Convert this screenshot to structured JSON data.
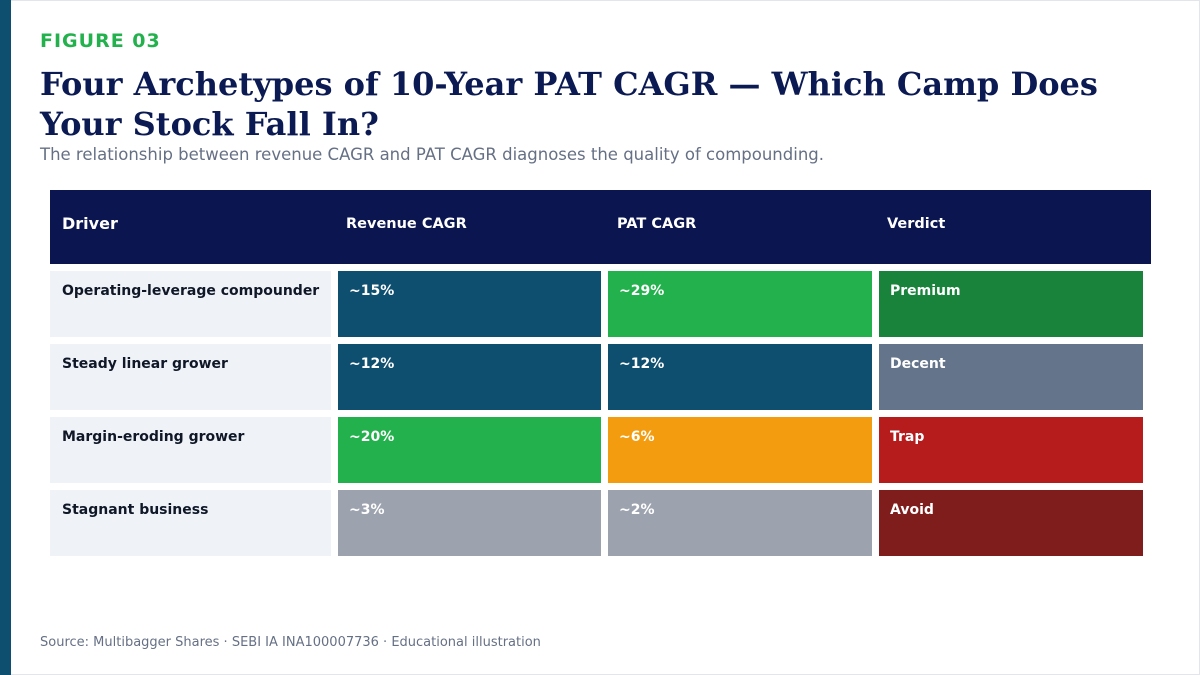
{
  "figure_label": "FIGURE 03",
  "title": "Four Archetypes of 10-Year PAT CAGR — Which Camp Does Your Stock Fall In?",
  "subtitle": "The relationship between revenue CAGR and PAT CAGR diagnoses the quality of compounding.",
  "source": "Source: Multibagger Shares · SEBI IA INA100007736 · Educational illustration",
  "colors": {
    "navy": "#0b1650",
    "teal": "#0e4e6e",
    "green": "#22b14c",
    "dark_green": "#19833b",
    "amber": "#f39c0f",
    "gray": "#9ca3af",
    "slate": "#64748b",
    "red": "#b71c1c",
    "dark_red": "#7f1d1d"
  },
  "chart_data": {
    "type": "table",
    "columns": [
      "Driver",
      "Revenue CAGR",
      "PAT CAGR",
      "Verdict"
    ],
    "rows": [
      {
        "driver": "Operating-leverage compounder",
        "revenue_cagr": "~15%",
        "pat_cagr": "~29%",
        "verdict": "Premium",
        "revenue_color": "#0e4e6e",
        "pat_color": "#22b14c",
        "verdict_color": "#19833b"
      },
      {
        "driver": "Steady linear grower",
        "revenue_cagr": "~12%",
        "pat_cagr": "~12%",
        "verdict": "Decent",
        "revenue_color": "#0e4e6e",
        "pat_color": "#0e4e6e",
        "verdict_color": "#64748b"
      },
      {
        "driver": "Margin-eroding grower",
        "revenue_cagr": "~20%",
        "pat_cagr": "~6%",
        "verdict": "Trap",
        "revenue_color": "#22b14c",
        "pat_color": "#f39c0f",
        "verdict_color": "#b71c1c"
      },
      {
        "driver": "Stagnant business",
        "revenue_cagr": "~3%",
        "pat_cagr": "~2%",
        "verdict": "Avoid",
        "revenue_color": "#9ca3af",
        "pat_color": "#9ca3af",
        "verdict_color": "#7f1d1d"
      }
    ]
  }
}
